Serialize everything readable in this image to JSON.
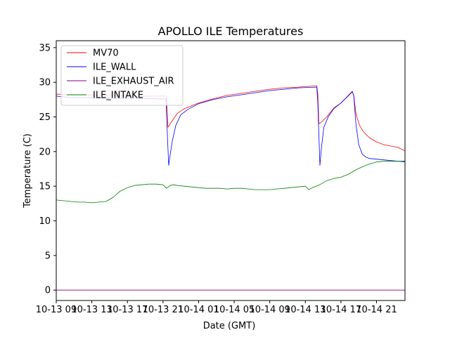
{
  "chart_data": {
    "type": "line",
    "title": "APOLLO ILE Temperatures",
    "xlabel": "Date (GMT)",
    "ylabel": "Temperature (C)",
    "xlim": [
      0,
      49
    ],
    "ylim": [
      -1.5,
      36
    ],
    "yticks": [
      0,
      5,
      10,
      15,
      20,
      25,
      30,
      35
    ],
    "xticks": [
      {
        "x": 0,
        "label": "10-13 09"
      },
      {
        "x": 5,
        "label": "10-13 13"
      },
      {
        "x": 10,
        "label": "10-13 17"
      },
      {
        "x": 15,
        "label": "10-13 21"
      },
      {
        "x": 20,
        "label": "10-14 01"
      },
      {
        "x": 25,
        "label": "10-14 05"
      },
      {
        "x": 30,
        "label": "10-14 09"
      },
      {
        "x": 35,
        "label": "10-14 13"
      },
      {
        "x": 40,
        "label": "10-14 17"
      },
      {
        "x": 45,
        "label": "10-14 21"
      }
    ],
    "legend_position": "upper-left",
    "grid": false,
    "series": [
      {
        "name": "MV70",
        "color": "#ff0000",
        "x": [
          0,
          2,
          4,
          6,
          8,
          10,
          12,
          14,
          15.4,
          15.55,
          15.7,
          16.2,
          17,
          18,
          20,
          22,
          24,
          26,
          28,
          30,
          32,
          34,
          36.6,
          36.75,
          36.9,
          37.3,
          38,
          39,
          40,
          41.6,
          41.8,
          42.1,
          42.6,
          43.2,
          44,
          45,
          46,
          47,
          48,
          49
        ],
        "y": [
          28.3,
          28.2,
          28.2,
          28.1,
          28.1,
          28.0,
          28.0,
          28.0,
          28.0,
          27.0,
          23.5,
          24.3,
          25.5,
          26.2,
          27.0,
          27.6,
          28.1,
          28.4,
          28.7,
          29.0,
          29.2,
          29.3,
          29.5,
          28.3,
          24.0,
          24.3,
          25.0,
          26.3,
          27.0,
          28.6,
          28.1,
          25.5,
          23.8,
          22.8,
          22.0,
          21.4,
          21.0,
          20.8,
          20.6,
          20.1
        ]
      },
      {
        "name": "ILE_WALL",
        "color": "#0000ff",
        "x": [
          0,
          2,
          4,
          6,
          8,
          10,
          12,
          14,
          15.4,
          15.55,
          15.8,
          16.0,
          16.3,
          16.8,
          17.5,
          18.5,
          20,
          22,
          24,
          26,
          28,
          30,
          32,
          34,
          36.6,
          36.75,
          37.05,
          37.25,
          37.6,
          38.2,
          39,
          40,
          41.6,
          41.8,
          42.1,
          42.5,
          43,
          43.5,
          44,
          45,
          46,
          47,
          48,
          49
        ],
        "y": [
          28.0,
          27.8,
          27.8,
          27.7,
          27.7,
          27.7,
          27.7,
          27.6,
          27.6,
          24.0,
          18.0,
          19.5,
          21.5,
          23.8,
          25.3,
          26.1,
          26.9,
          27.5,
          27.9,
          28.2,
          28.5,
          28.8,
          29.0,
          29.2,
          29.3,
          27.0,
          18.0,
          20.5,
          23.5,
          25.0,
          26.2,
          27.0,
          28.7,
          28.0,
          24.0,
          21.0,
          19.6,
          19.2,
          19.0,
          18.9,
          18.8,
          18.7,
          18.6,
          18.6
        ]
      },
      {
        "name": "ILE_EXHAUST_AIR",
        "color": "#800080",
        "x": [
          0,
          49
        ],
        "y": [
          0,
          0
        ]
      },
      {
        "name": "ILE_INTAKE",
        "color": "#008000",
        "x": [
          0,
          1,
          2,
          3,
          4,
          5,
          6,
          7,
          8,
          9,
          10,
          11,
          12,
          13,
          14,
          15,
          15.5,
          16,
          16.5,
          17,
          18,
          19,
          20,
          21,
          22,
          23,
          24,
          25,
          26,
          27,
          28,
          29,
          30,
          31,
          32,
          33,
          34,
          35,
          35.5,
          36,
          37,
          38,
          39,
          40,
          41,
          42,
          43,
          44,
          45,
          46,
          47,
          48,
          49
        ],
        "y": [
          13.0,
          12.9,
          12.8,
          12.7,
          12.7,
          12.6,
          12.7,
          12.8,
          13.4,
          14.3,
          14.8,
          15.1,
          15.2,
          15.3,
          15.3,
          15.2,
          14.7,
          15.1,
          15.2,
          15.1,
          15.0,
          14.9,
          14.8,
          14.7,
          14.7,
          14.7,
          14.6,
          14.7,
          14.7,
          14.6,
          14.5,
          14.5,
          14.5,
          14.6,
          14.7,
          14.8,
          14.9,
          15.0,
          14.5,
          14.8,
          15.2,
          15.8,
          16.1,
          16.3,
          16.7,
          17.3,
          17.8,
          18.2,
          18.5,
          18.6,
          18.6,
          18.6,
          18.5
        ]
      }
    ]
  }
}
